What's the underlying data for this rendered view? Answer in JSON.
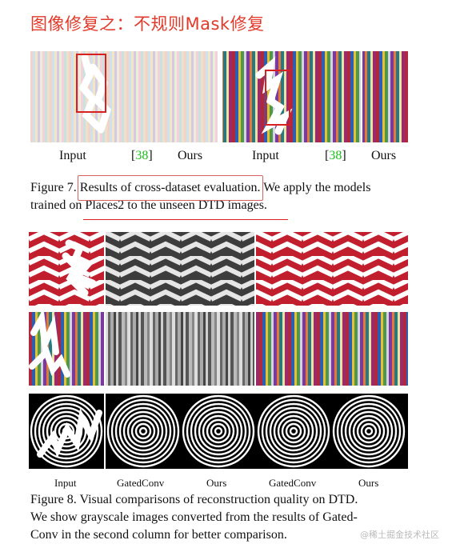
{
  "header": {
    "title": "图像修复之：不规则Mask修复"
  },
  "figure7": {
    "labels": [
      "Input",
      "38",
      "Ours",
      "Input",
      "38",
      "Ours"
    ],
    "bracket_open": "[",
    "bracket_close": "]",
    "caption_prefix": "Figure 7.",
    "caption_highlight": "Results of cross-dataset evaluation.",
    "caption_rest_line1": "We apply the models",
    "caption_line2": "trained on Places2 to the unseen DTD images."
  },
  "figure8": {
    "labels": [
      "Input",
      "GatedConv",
      "Ours",
      "GatedConv",
      "Ours"
    ],
    "caption_line1": "Figure 8. Visual comparisons of reconstruction quality on DTD.",
    "caption_line2": "We show grayscale images converted from the results of Gated-",
    "caption_line3": "Conv in the second column for better comparison."
  },
  "watermark": "@稀土掘金技术社区",
  "colors": {
    "title": "#e23a2a",
    "highlight": "#d82020",
    "ref": "#19c019"
  }
}
